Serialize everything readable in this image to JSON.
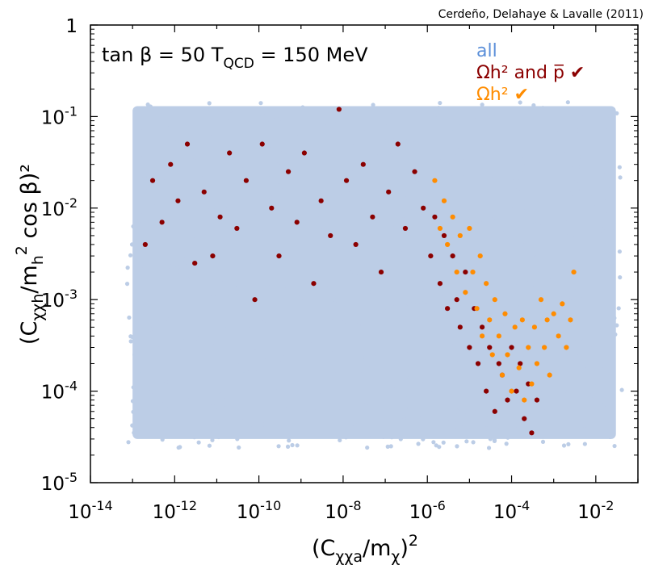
{
  "chart_data": {
    "type": "scatter",
    "credit": "Cerdeño, Delahaye & Lavalle (2011)",
    "annotation": {
      "prefix": "tan β = 50  T",
      "sub": "QCD",
      "suffix": " = 150 MeV"
    },
    "xlabel": {
      "open": "(C",
      "sub": "χχa",
      "mid": "/m",
      "sub2": "χ",
      "close": ")",
      "sup": "2"
    },
    "ylabel": {
      "open": "(C",
      "sub": "χχh",
      "mid": "/m",
      "sub2": "h",
      "sup": "2",
      "close": " cos β)²"
    },
    "x_scale": "log",
    "y_scale": "log",
    "xlim": [
      1e-14,
      0.1
    ],
    "ylim": [
      1e-05,
      1
    ],
    "x_ticks": [
      {
        "base": "10",
        "exp": "-14"
      },
      {
        "base": "10",
        "exp": "-12"
      },
      {
        "base": "10",
        "exp": "-10"
      },
      {
        "base": "10",
        "exp": "-8"
      },
      {
        "base": "10",
        "exp": "-6"
      },
      {
        "base": "10",
        "exp": "-4"
      },
      {
        "base": "10",
        "exp": "-2"
      }
    ],
    "y_ticks": [
      {
        "base": "1",
        "exp": ""
      },
      {
        "base": "10",
        "exp": "-1"
      },
      {
        "base": "10",
        "exp": "-2"
      },
      {
        "base": "10",
        "exp": "-3"
      },
      {
        "base": "10",
        "exp": "-4"
      },
      {
        "base": "10",
        "exp": "-5"
      }
    ],
    "legend": {
      "position": "top-right"
    },
    "grid": false,
    "series": [
      {
        "name": "all",
        "color": "#bccde6",
        "region": {
          "x_range": [
            1e-13,
            0.03
          ],
          "y_range": [
            3e-05,
            0.13
          ]
        }
      },
      {
        "name": "Ωh² and p̅ ✔",
        "color": "#8b0000",
        "points": [
          [
            2e-13,
            0.004
          ],
          [
            3e-13,
            0.02
          ],
          [
            5e-13,
            0.007
          ],
          [
            8e-13,
            0.03
          ],
          [
            1.2e-12,
            0.012
          ],
          [
            2e-12,
            0.05
          ],
          [
            3e-12,
            0.0025
          ],
          [
            5e-12,
            0.015
          ],
          [
            8e-12,
            0.003
          ],
          [
            1.2e-11,
            0.008
          ],
          [
            2e-11,
            0.04
          ],
          [
            3e-11,
            0.006
          ],
          [
            5e-11,
            0.02
          ],
          [
            8e-11,
            0.001
          ],
          [
            1.2e-10,
            0.05
          ],
          [
            2e-10,
            0.01
          ],
          [
            3e-10,
            0.003
          ],
          [
            5e-10,
            0.025
          ],
          [
            8e-10,
            0.007
          ],
          [
            1.2e-09,
            0.04
          ],
          [
            2e-09,
            0.0015
          ],
          [
            3e-09,
            0.012
          ],
          [
            5e-09,
            0.005
          ],
          [
            8e-09,
            0.12
          ],
          [
            1.2e-08,
            0.02
          ],
          [
            2e-08,
            0.004
          ],
          [
            3e-08,
            0.03
          ],
          [
            5e-08,
            0.008
          ],
          [
            8e-08,
            0.002
          ],
          [
            1.2e-07,
            0.015
          ],
          [
            2e-07,
            0.05
          ],
          [
            3e-07,
            0.006
          ],
          [
            5e-07,
            0.025
          ],
          [
            8e-07,
            0.01
          ],
          [
            1.2e-06,
            0.003
          ],
          [
            1.5e-06,
            0.008
          ],
          [
            2e-06,
            0.0015
          ],
          [
            2.5e-06,
            0.005
          ],
          [
            3e-06,
            0.0008
          ],
          [
            4e-06,
            0.003
          ],
          [
            5e-06,
            0.001
          ],
          [
            6e-06,
            0.0005
          ],
          [
            8e-06,
            0.002
          ],
          [
            1e-05,
            0.0003
          ],
          [
            1.3e-05,
            0.0008
          ],
          [
            1.6e-05,
            0.0002
          ],
          [
            2e-05,
            0.0005
          ],
          [
            2.5e-05,
            0.0001
          ],
          [
            3e-05,
            0.0003
          ],
          [
            4e-05,
            6e-05
          ],
          [
            5e-05,
            0.0002
          ],
          [
            6e-05,
            0.00015
          ],
          [
            8e-05,
            8e-05
          ],
          [
            0.0001,
            0.0003
          ],
          [
            0.00013,
            0.0001
          ],
          [
            0.00016,
            0.0002
          ],
          [
            0.0002,
            5e-05
          ],
          [
            0.00025,
            0.00012
          ],
          [
            0.0003,
            3.5e-05
          ],
          [
            0.0004,
            8e-05
          ]
        ]
      },
      {
        "name": "Ωh² ✔",
        "color": "#ff8c00",
        "points": [
          [
            1.5e-06,
            0.02
          ],
          [
            2e-06,
            0.006
          ],
          [
            2.5e-06,
            0.012
          ],
          [
            3e-06,
            0.004
          ],
          [
            4e-06,
            0.008
          ],
          [
            5e-06,
            0.002
          ],
          [
            6e-06,
            0.005
          ],
          [
            8e-06,
            0.0012
          ],
          [
            1e-05,
            0.006
          ],
          [
            1.2e-05,
            0.002
          ],
          [
            1.5e-05,
            0.0008
          ],
          [
            1.8e-05,
            0.003
          ],
          [
            2e-05,
            0.0004
          ],
          [
            2.5e-05,
            0.0015
          ],
          [
            3e-05,
            0.0006
          ],
          [
            3.5e-05,
            0.00025
          ],
          [
            4e-05,
            0.001
          ],
          [
            5e-05,
            0.0004
          ],
          [
            6e-05,
            0.00015
          ],
          [
            7e-05,
            0.0007
          ],
          [
            8e-05,
            0.00025
          ],
          [
            0.0001,
            0.0001
          ],
          [
            0.00012,
            0.0005
          ],
          [
            0.00015,
            0.00018
          ],
          [
            0.00018,
            0.0006
          ],
          [
            0.0002,
            8e-05
          ],
          [
            0.00025,
            0.0003
          ],
          [
            0.0003,
            0.00012
          ],
          [
            0.00035,
            0.0005
          ],
          [
            0.0004,
            0.0002
          ],
          [
            0.0005,
            0.001
          ],
          [
            0.0006,
            0.0003
          ],
          [
            0.0007,
            0.0006
          ],
          [
            0.0008,
            0.00015
          ],
          [
            0.001,
            0.0007
          ],
          [
            0.0013,
            0.0004
          ],
          [
            0.0016,
            0.0009
          ],
          [
            0.002,
            0.0003
          ],
          [
            0.0025,
            0.0006
          ],
          [
            0.003,
            0.002
          ]
        ]
      }
    ]
  }
}
